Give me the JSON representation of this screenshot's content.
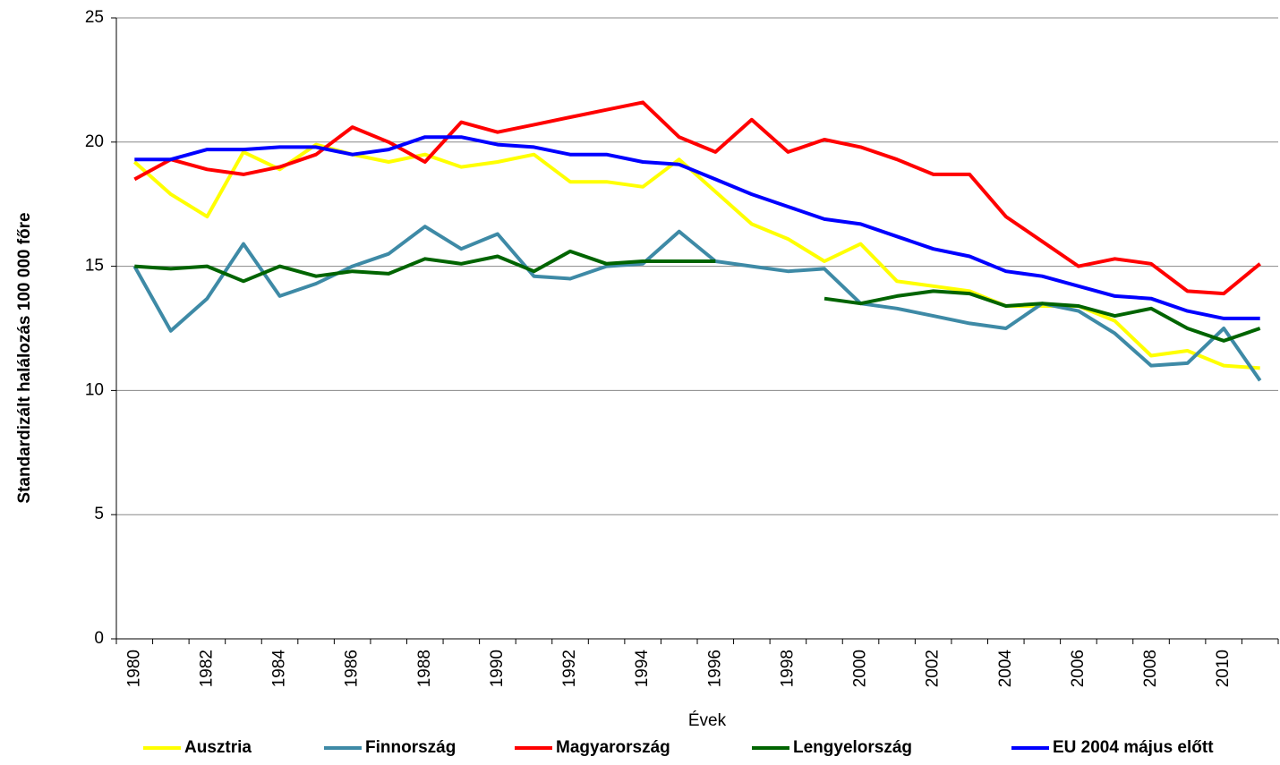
{
  "chart_data": {
    "type": "line",
    "y_label": "Standardizált halálozás 100 000 főre",
    "x_label": "Évek",
    "categories": [
      "1980",
      null,
      "1982",
      null,
      "1984",
      null,
      "1986",
      null,
      "1988",
      null,
      "1990",
      null,
      "1992",
      null,
      "1994",
      null,
      "1996",
      null,
      "1998",
      null,
      "2000",
      null,
      "2002",
      null,
      "2004",
      null,
      "2006",
      null,
      "2008",
      null,
      "2010",
      null
    ],
    "ylim": [
      0,
      25
    ],
    "yticks": [
      0,
      5,
      10,
      15,
      20,
      25
    ],
    "grid": true,
    "legend": "bottom",
    "series": [
      {
        "name": "Ausztria",
        "color": "#ffff00",
        "values": [
          19.2,
          17.9,
          17.0,
          19.6,
          18.9,
          19.9,
          19.5,
          19.2,
          19.5,
          19.0,
          19.2,
          19.5,
          18.4,
          18.4,
          18.2,
          19.3,
          18.0,
          16.7,
          16.1,
          15.2,
          15.9,
          14.4,
          14.2,
          14.0,
          13.4,
          13.4,
          13.4,
          12.8,
          11.4,
          11.6,
          11.0,
          10.9
        ]
      },
      {
        "name": "Finnország",
        "color": "#3e8aa6",
        "values": [
          15.0,
          12.4,
          13.7,
          15.9,
          13.8,
          14.3,
          15.0,
          15.5,
          16.6,
          15.7,
          16.3,
          14.6,
          14.5,
          15.0,
          15.1,
          16.4,
          15.2,
          15.0,
          14.8,
          14.9,
          13.5,
          13.3,
          13.0,
          12.7,
          12.5,
          13.5,
          13.2,
          12.3,
          11.0,
          11.1,
          12.5,
          10.4
        ]
      },
      {
        "name": "Magyarország",
        "color": "#ff0000",
        "values": [
          18.5,
          19.3,
          18.9,
          18.7,
          19.0,
          19.5,
          20.6,
          20.0,
          19.2,
          20.8,
          20.4,
          20.7,
          21.0,
          21.3,
          21.6,
          20.2,
          19.6,
          20.9,
          19.6,
          20.1,
          19.8,
          19.3,
          18.7,
          18.7,
          17.0,
          16.0,
          15.0,
          15.3,
          15.1,
          14.0,
          13.9,
          15.1
        ]
      },
      {
        "name": "Lengyelország",
        "color": "#006400",
        "values": [
          15.0,
          14.9,
          15.0,
          14.4,
          15.0,
          14.6,
          14.8,
          14.7,
          15.3,
          15.1,
          15.4,
          14.8,
          15.6,
          15.1,
          15.2,
          15.2,
          15.2,
          null,
          null,
          13.7,
          13.5,
          13.8,
          14.0,
          13.9,
          13.4,
          13.5,
          13.4,
          13.0,
          13.3,
          12.5,
          12.0,
          12.5
        ]
      },
      {
        "name": "EU 2004 május előtt",
        "color": "#0000ff",
        "values": [
          19.3,
          19.3,
          19.7,
          19.7,
          19.8,
          19.8,
          19.5,
          19.7,
          20.2,
          20.2,
          19.9,
          19.8,
          19.5,
          19.5,
          19.2,
          19.1,
          18.5,
          17.9,
          17.4,
          16.9,
          16.7,
          16.2,
          15.7,
          15.4,
          14.8,
          14.6,
          14.2,
          13.8,
          13.7,
          13.2,
          12.9,
          12.9
        ]
      }
    ]
  }
}
